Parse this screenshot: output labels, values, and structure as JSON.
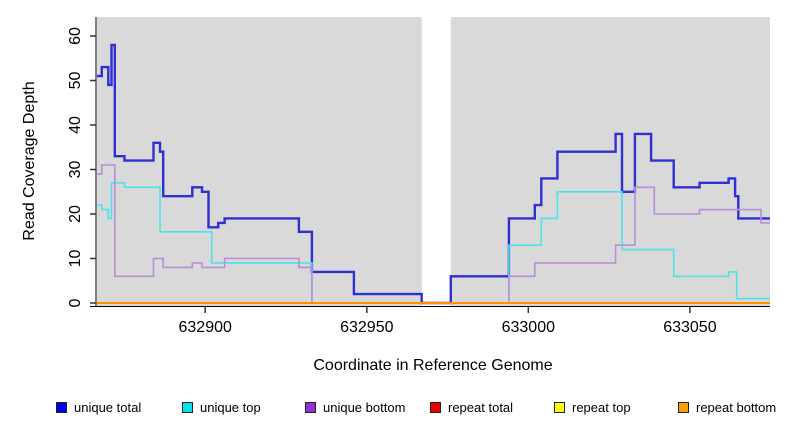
{
  "chart_data": {
    "type": "line",
    "subtype": "step-after",
    "title": "",
    "xlabel": "Coordinate in Reference Genome",
    "ylabel": "Read Coverage Depth",
    "xlim": [
      632866.5,
      633074.8
    ],
    "ylim": [
      0,
      64.3
    ],
    "x_ticks": [
      632900,
      632950,
      633000,
      633050
    ],
    "y_ticks": [
      0,
      10,
      20,
      30,
      40,
      50,
      60
    ],
    "grid": false,
    "legend_position": "bottom",
    "panel_bg": "#d9d9d9",
    "masked_region": {
      "x_start": 632967,
      "x_end": 632976
    },
    "series": [
      {
        "name": "unique total",
        "color": "#2f2fd3",
        "width": 2.4,
        "points": [
          [
            632866.5,
            51
          ],
          [
            632868,
            53
          ],
          [
            632870,
            49
          ],
          [
            632871,
            58
          ],
          [
            632872,
            33
          ],
          [
            632875,
            32
          ],
          [
            632884,
            36
          ],
          [
            632886,
            34
          ],
          [
            632887,
            24
          ],
          [
            632896,
            26
          ],
          [
            632899,
            25
          ],
          [
            632901,
            17
          ],
          [
            632904,
            18
          ],
          [
            632906,
            19
          ],
          [
            632929,
            16
          ],
          [
            632933,
            7
          ],
          [
            632946,
            2
          ],
          [
            632967,
            0
          ],
          [
            632976,
            6
          ],
          [
            632994,
            19
          ],
          [
            633002,
            22
          ],
          [
            633004,
            28
          ],
          [
            633009,
            34
          ],
          [
            633027,
            38
          ],
          [
            633029,
            25
          ],
          [
            633033,
            38
          ],
          [
            633038,
            32
          ],
          [
            633045,
            26
          ],
          [
            633053,
            27
          ],
          [
            633062,
            28
          ],
          [
            633064,
            24
          ],
          [
            633065,
            19
          ],
          [
            633074.8,
            19
          ]
        ]
      },
      {
        "name": "unique top",
        "color": "#4fe1e8",
        "width": 1.6,
        "points": [
          [
            632866.5,
            22
          ],
          [
            632868,
            21
          ],
          [
            632870,
            19
          ],
          [
            632871,
            27
          ],
          [
            632875,
            26
          ],
          [
            632886,
            16
          ],
          [
            632902,
            9
          ],
          [
            632933,
            0
          ],
          [
            632994,
            13
          ],
          [
            633004,
            19
          ],
          [
            633009,
            25
          ],
          [
            633029,
            12
          ],
          [
            633045,
            6
          ],
          [
            633062,
            7
          ],
          [
            633064.5,
            1
          ],
          [
            633074.8,
            1
          ]
        ]
      },
      {
        "name": "unique bottom",
        "color": "#b78fd9",
        "width": 1.6,
        "points": [
          [
            632866.5,
            29
          ],
          [
            632868,
            31
          ],
          [
            632872,
            6
          ],
          [
            632884,
            10
          ],
          [
            632887,
            8
          ],
          [
            632896,
            9
          ],
          [
            632899,
            8
          ],
          [
            632906,
            10
          ],
          [
            632929,
            8
          ],
          [
            632933,
            0
          ],
          [
            632994,
            6
          ],
          [
            633002,
            9
          ],
          [
            633027,
            13
          ],
          [
            633033,
            26
          ],
          [
            633039,
            20
          ],
          [
            633053,
            21
          ],
          [
            633072,
            18
          ],
          [
            633074.8,
            18
          ]
        ]
      },
      {
        "name": "repeat total",
        "color": "#d40000",
        "width": 1.6,
        "points": [
          [
            632866.5,
            0
          ],
          [
            633074.8,
            0
          ]
        ]
      },
      {
        "name": "repeat top",
        "color": "#f2f200",
        "width": 1.6,
        "points": [
          [
            632866.5,
            0
          ],
          [
            633074.8,
            0
          ]
        ]
      },
      {
        "name": "repeat bottom",
        "color": "#ff9100",
        "width": 2,
        "points": [
          [
            632866.5,
            0
          ],
          [
            633074.8,
            0
          ]
        ]
      }
    ]
  },
  "legend": {
    "items": [
      {
        "label": "unique total",
        "swatch": "#0000f0"
      },
      {
        "label": "unique top",
        "swatch": "#00e1ec"
      },
      {
        "label": "unique bottom",
        "swatch": "#9232dd"
      },
      {
        "label": "repeat total",
        "swatch": "#ea0000"
      },
      {
        "label": "repeat top",
        "swatch": "#fcfc00"
      },
      {
        "label": "repeat bottom",
        "swatch": "#ff9c00"
      }
    ]
  }
}
